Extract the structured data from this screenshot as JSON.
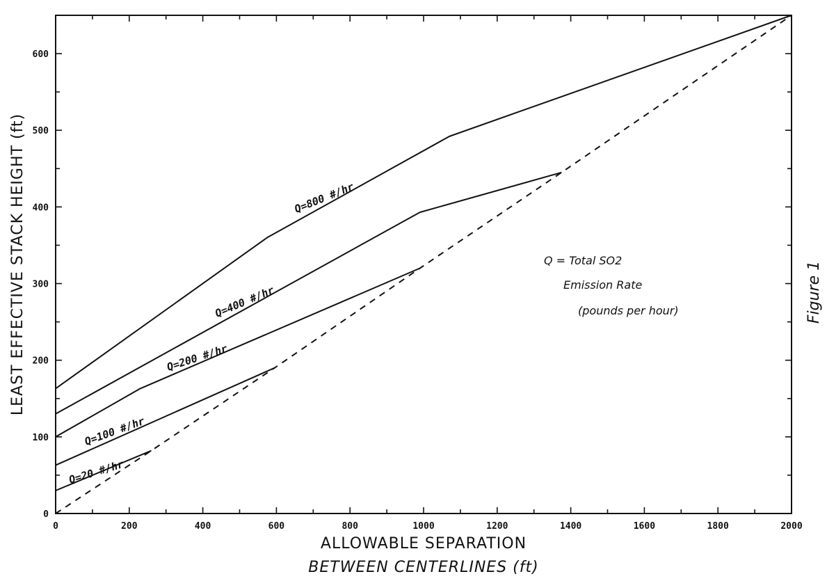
{
  "chart_data": {
    "type": "line",
    "xlabel": "ALLOWABLE SEPARATION",
    "xlabel_line2": "BETWEEN CENTERLINES (ft)",
    "ylabel": "LEAST EFFECTIVE STACK HEIGHT (ft)",
    "figure_label": "Figure 1",
    "xlim": [
      0,
      2000
    ],
    "ylim": [
      0,
      650
    ],
    "x_ticks": [
      "0",
      "200",
      "400",
      "600",
      "800",
      "1000",
      "1200",
      "1400",
      "1600",
      "1800",
      "2000"
    ],
    "y_ticks": [
      "0",
      "100",
      "200",
      "300",
      "400",
      "500",
      "600"
    ],
    "grid": false,
    "legend": {
      "placement": "center-right",
      "lines": [
        "Q = Total SO2",
        "Emission Rate",
        "(pounds per hour)"
      ]
    },
    "series": [
      {
        "name": "Q=800 #/hr",
        "style": "solid",
        "points": [
          [
            0,
            163
          ],
          [
            575,
            360
          ],
          [
            1070,
            492
          ],
          [
            2000,
            650
          ]
        ]
      },
      {
        "name": "Q=400 #/hr",
        "style": "solid",
        "points": [
          [
            0,
            130
          ],
          [
            990,
            393
          ],
          [
            1375,
            445
          ]
        ]
      },
      {
        "name": "Q=200 #/hr",
        "style": "solid",
        "points": [
          [
            0,
            100
          ],
          [
            230,
            163
          ],
          [
            990,
            320
          ]
        ]
      },
      {
        "name": "Q=100 #/hr",
        "style": "solid",
        "points": [
          [
            0,
            63
          ],
          [
            595,
            190
          ]
        ]
      },
      {
        "name": "Q=20 #/hr",
        "style": "solid",
        "points": [
          [
            0,
            30
          ],
          [
            260,
            82
          ]
        ]
      },
      {
        "name": "",
        "style": "dashed",
        "points": [
          [
            0,
            0
          ],
          [
            260,
            82
          ],
          [
            595,
            190
          ],
          [
            990,
            320
          ],
          [
            1375,
            445
          ],
          [
            2000,
            650
          ]
        ]
      }
    ]
  }
}
